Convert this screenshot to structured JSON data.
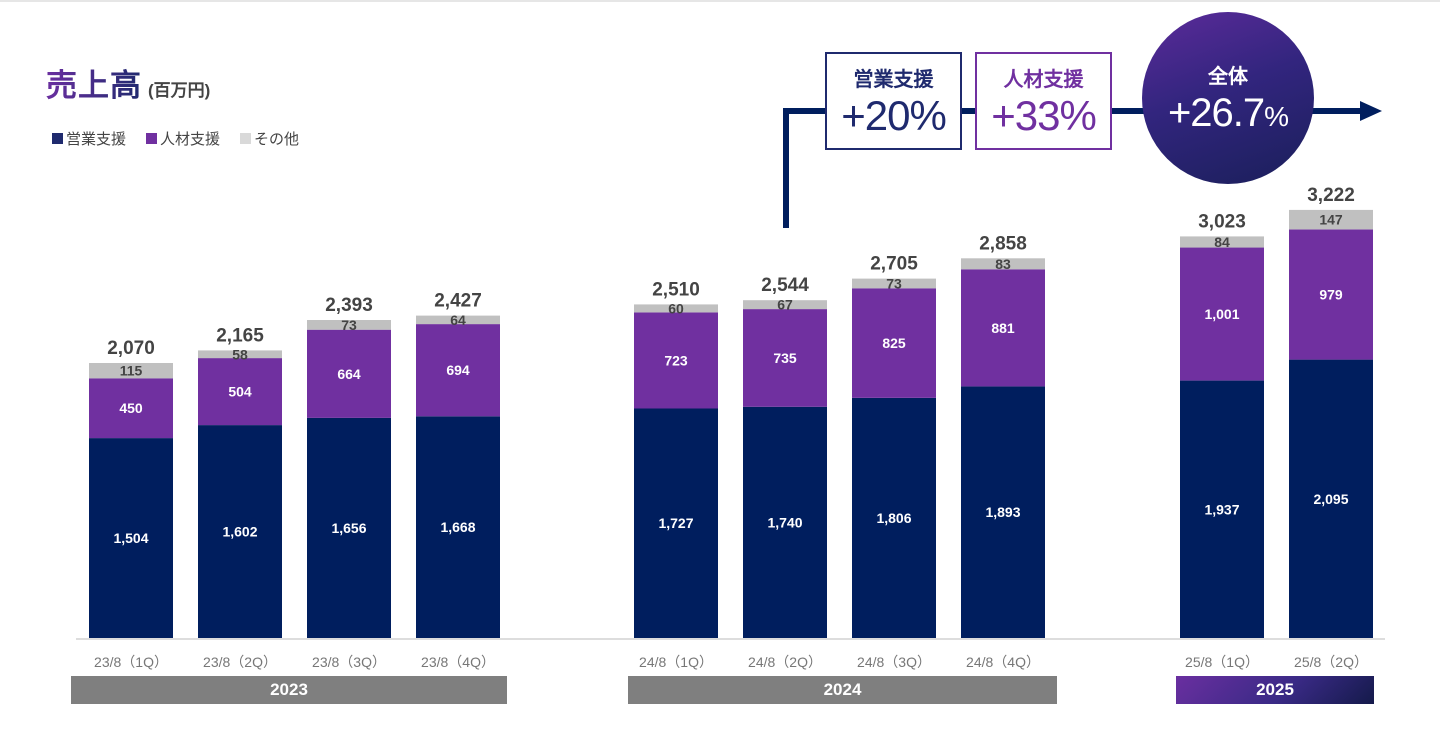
{
  "header": {
    "title": "売上高",
    "unit": "(百万円)"
  },
  "legend": [
    {
      "label": "営業支援",
      "color": "#1f2a6e"
    },
    {
      "label": "人材支援",
      "color": "#7030a0"
    },
    {
      "label": "その他",
      "color": "#d9d9d9"
    }
  ],
  "growth": {
    "sales_support": {
      "label": "営業支援",
      "value": "+20%"
    },
    "hr_support": {
      "label": "人材支援",
      "value": "+33%"
    },
    "overall": {
      "label": "全体",
      "value": "+26.7",
      "pct": "%"
    }
  },
  "year_groups": [
    {
      "label": "2023",
      "color": "#7f7f7f"
    },
    {
      "label": "2024",
      "color": "#7f7f7f"
    },
    {
      "label": "2025",
      "color": "gradient"
    }
  ],
  "chart_data": {
    "type": "bar",
    "stacked": true,
    "title": "売上高",
    "unit": "百万円",
    "categories": [
      "23/8（1Q）",
      "23/8（2Q）",
      "23/8（3Q）",
      "23/8（4Q）",
      "24/8（1Q）",
      "24/8（2Q）",
      "24/8（3Q）",
      "24/8（4Q）",
      "25/8（1Q）",
      "25/8（2Q）"
    ],
    "groups": [
      "2023",
      "2023",
      "2023",
      "2023",
      "2024",
      "2024",
      "2024",
      "2024",
      "2025",
      "2025"
    ],
    "series": [
      {
        "name": "営業支援",
        "color": "#001e5e",
        "values": [
          1504,
          1602,
          1656,
          1668,
          1727,
          1740,
          1806,
          1893,
          1937,
          2095
        ],
        "labels": [
          "1,504",
          "1,602",
          "1,656",
          "1,668",
          "1,727",
          "1,740",
          "1,806",
          "1,893",
          "1,937",
          "2,095"
        ]
      },
      {
        "name": "人材支援",
        "color": "#7030a0",
        "values": [
          450,
          504,
          664,
          694,
          723,
          735,
          825,
          881,
          1001,
          979
        ],
        "labels": [
          "450",
          "504",
          "664",
          "694",
          "723",
          "735",
          "825",
          "881",
          "1,001",
          "979"
        ]
      },
      {
        "name": "その他",
        "color": "#c0c0c0",
        "values": [
          115,
          58,
          73,
          64,
          60,
          67,
          73,
          83,
          84,
          147
        ],
        "labels": [
          "115",
          "58",
          "73",
          "64",
          "60",
          "67",
          "73",
          "83",
          "84",
          "147"
        ]
      }
    ],
    "totals": [
      2070,
      2165,
      2393,
      2427,
      2510,
      2544,
      2705,
      2858,
      3023,
      3222
    ],
    "total_labels": [
      "2,070",
      "2,165",
      "2,393",
      "2,427",
      "2,510",
      "2,544",
      "2,705",
      "2,858",
      "3,023",
      "3,222"
    ],
    "xlabel": "",
    "ylabel": "",
    "ylim": [
      0,
      3300
    ],
    "grid": false,
    "legend_position": "top-left"
  }
}
